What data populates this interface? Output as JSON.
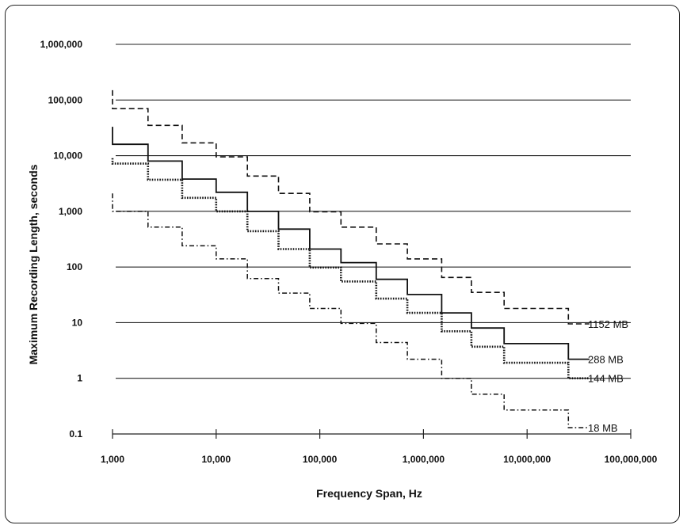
{
  "chart_data": {
    "type": "line",
    "title": "",
    "xlabel": "Frequency Span, Hz",
    "ylabel": "Maximum Recording Length, seconds",
    "x_scale": "log",
    "y_scale": "log",
    "xlim": [
      1000,
      100000000
    ],
    "ylim": [
      0.1,
      1000000
    ],
    "grid": "horizontal",
    "x_ticks": [
      1000,
      10000,
      100000,
      1000000,
      10000000,
      100000000
    ],
    "x_tick_labels": [
      "1,000",
      "10,000",
      "100,000",
      "1,000,000",
      "10,000,000",
      "100,000,000"
    ],
    "y_ticks": [
      0.1,
      1,
      10,
      100,
      1000,
      10000,
      100000,
      1000000
    ],
    "y_tick_labels": [
      "0.1",
      "1",
      "10",
      "100",
      "1,000",
      "10,000",
      "100,000",
      "1,000,000"
    ],
    "x_breaks": [
      1000,
      2200,
      4700,
      10000,
      20000,
      40000,
      80000,
      160000,
      350000,
      700000,
      1500000,
      2900000,
      6000000,
      25000000,
      40000000
    ],
    "series": [
      {
        "name": "1152 MB",
        "style": "dashed",
        "start_y": 150000,
        "values": [
          70000,
          35000,
          17000,
          9500,
          4300,
          2100,
          980,
          520,
          260,
          140,
          65,
          35,
          18,
          9.5
        ]
      },
      {
        "name": "288 MB",
        "style": "solid",
        "start_y": 33000,
        "values": [
          16000,
          8000,
          3800,
          2200,
          1000,
          480,
          210,
          120,
          60,
          32,
          15,
          8,
          4.2,
          2.2
        ]
      },
      {
        "name": "144 MB",
        "style": "dotted",
        "start_y": 9000,
        "values": [
          7200,
          3700,
          1750,
          1000,
          440,
          210,
          98,
          55,
          27,
          15,
          7,
          3.7,
          1.9,
          1.0
        ]
      },
      {
        "name": "18 MB",
        "style": "dash-dot",
        "start_y": 2100,
        "values": [
          1000,
          520,
          240,
          140,
          62,
          34,
          18,
          9.7,
          4.4,
          2.2,
          1.0,
          0.52,
          0.27,
          0.13
        ]
      }
    ]
  }
}
